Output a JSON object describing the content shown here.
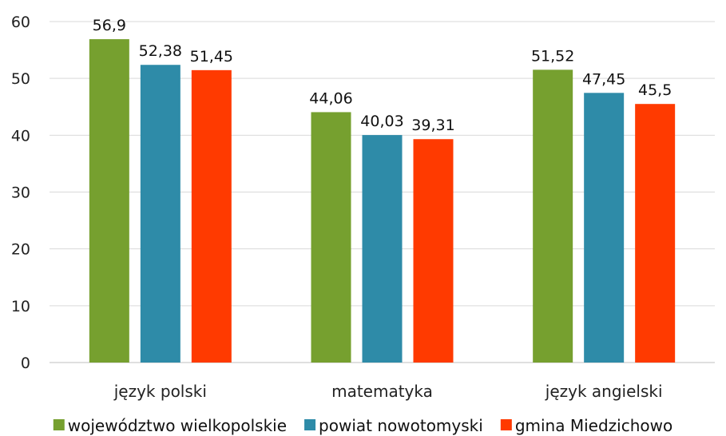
{
  "chart_data": {
    "type": "bar",
    "categories": [
      "język polski",
      "matematyka",
      "język angielski"
    ],
    "series": [
      {
        "name": "województwo wielkopolskie",
        "color": "#76a02f",
        "values": [
          56.9,
          44.06,
          51.52
        ],
        "labels": [
          "56,9",
          "44,06",
          "51,52"
        ]
      },
      {
        "name": "powiat nowotomyski",
        "color": "#2e8ba8",
        "values": [
          52.38,
          40.03,
          47.45
        ],
        "labels": [
          "52,38",
          "40,03",
          "47,45"
        ]
      },
      {
        "name": "gmina Miedzichowo",
        "color": "#ff3a00",
        "values": [
          51.45,
          39.31,
          45.5
        ],
        "labels": [
          "51,45",
          "39,31",
          "45,5"
        ]
      }
    ],
    "ylim": [
      0,
      60
    ],
    "yticks": [
      0,
      10,
      20,
      30,
      40,
      50,
      60
    ],
    "grid": true,
    "legend": "bottom",
    "xlabel": "",
    "ylabel": "",
    "title": ""
  }
}
